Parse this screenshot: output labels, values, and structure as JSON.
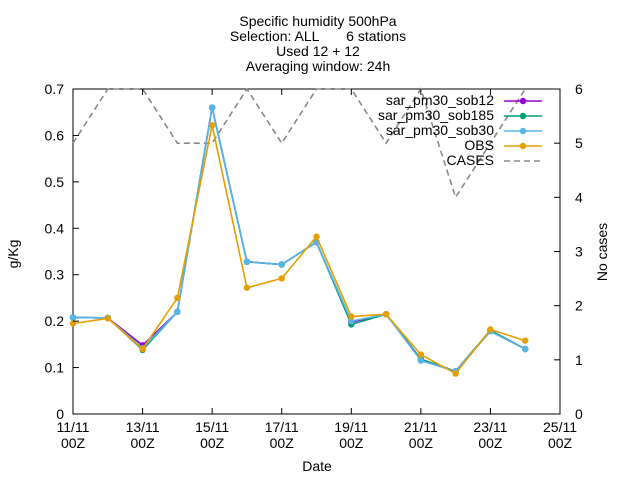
{
  "chart_data": {
    "type": "line",
    "title_lines": [
      "Specific humidity 500hPa",
      "Selection: ALL       6 stations",
      "Used 12 + 12",
      "Averaging window: 24h"
    ],
    "xlabel": "Date",
    "ylabel": "g/Kg",
    "y2label": "No cases",
    "ylim": [
      0,
      0.7
    ],
    "y2lim": [
      0,
      6
    ],
    "yticks": [
      "0",
      "0.1",
      "0.2",
      "0.3",
      "0.4",
      "0.5",
      "0.6",
      "0.7"
    ],
    "y2ticks": [
      "0",
      "1",
      "2",
      "3",
      "4",
      "5",
      "6"
    ],
    "xticks": [
      {
        "day": 0,
        "l1": "11/11",
        "l2": "00Z"
      },
      {
        "day": 2,
        "l1": "13/11",
        "l2": "00Z"
      },
      {
        "day": 4,
        "l1": "15/11",
        "l2": "00Z"
      },
      {
        "day": 6,
        "l1": "17/11",
        "l2": "00Z"
      },
      {
        "day": 8,
        "l1": "19/11",
        "l2": "00Z"
      },
      {
        "day": 10,
        "l1": "21/11",
        "l2": "00Z"
      },
      {
        "day": 12,
        "l1": "23/11",
        "l2": "00Z"
      },
      {
        "day": 14,
        "l1": "25/11",
        "l2": "00Z"
      }
    ],
    "xlim": [
      0,
      14
    ],
    "legend_position": "top-right",
    "x": [
      0,
      1,
      2,
      3,
      4,
      5,
      6,
      7,
      8,
      9,
      10,
      11,
      12,
      13
    ],
    "series": [
      {
        "name": "sar_pm30_sob12",
        "color": "#9400d3",
        "marker": "circle",
        "axis": "y1",
        "values": [
          0.208,
          0.207,
          0.148,
          0.22,
          0.66,
          0.328,
          0.322,
          0.37,
          0.198,
          0.215,
          0.118,
          0.092,
          0.18,
          0.14
        ]
      },
      {
        "name": "sar_pm30_sob185",
        "color": "#009e73",
        "marker": "circle",
        "axis": "y1",
        "values": [
          0.208,
          0.207,
          0.138,
          0.22,
          0.66,
          0.328,
          0.322,
          0.37,
          0.193,
          0.215,
          0.118,
          0.092,
          0.18,
          0.14
        ]
      },
      {
        "name": "sar_pm30_sob30",
        "color": "#56b4e9",
        "marker": "circle",
        "axis": "y1",
        "values": [
          0.208,
          0.207,
          0.142,
          0.22,
          0.66,
          0.328,
          0.322,
          0.37,
          0.2,
          0.215,
          0.115,
          0.092,
          0.178,
          0.14
        ]
      },
      {
        "name": "OBS",
        "color": "#e69f00",
        "marker": "circle",
        "axis": "y1",
        "values": [
          0.195,
          0.206,
          0.14,
          0.25,
          0.622,
          0.272,
          0.292,
          0.382,
          0.21,
          0.215,
          0.128,
          0.087,
          0.182,
          0.158
        ]
      },
      {
        "name": "CASES",
        "color": "#888888",
        "marker": "none",
        "dash": true,
        "axis": "y2",
        "values": [
          5,
          6,
          6,
          5,
          5,
          6,
          5,
          6,
          6,
          5,
          6,
          4,
          5,
          6
        ]
      }
    ]
  }
}
